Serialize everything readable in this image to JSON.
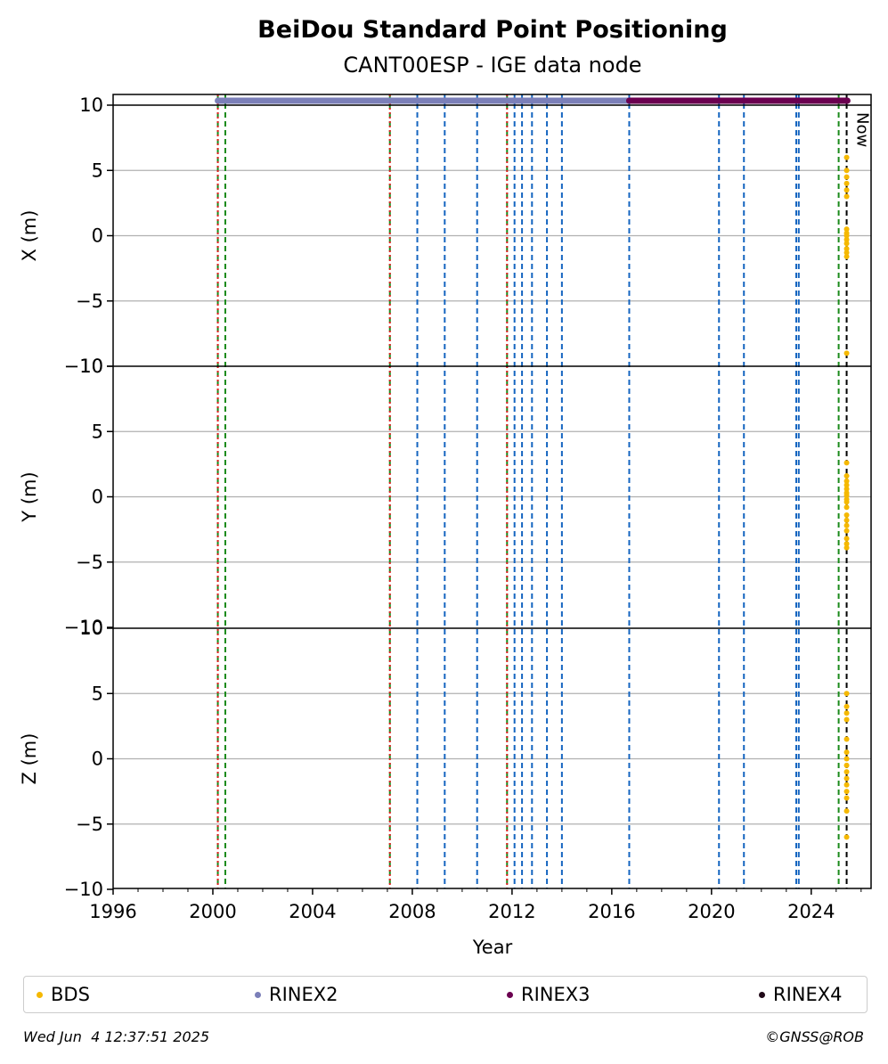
{
  "chart_data": {
    "type": "scatter",
    "title": "BeiDou Standard Point Positioning",
    "subtitle": "CANT00ESP - IGE data node",
    "xlabel": "Year",
    "xlim": [
      1996.0,
      2026.4
    ],
    "x_ticks": [
      1996,
      2000,
      2004,
      2008,
      2012,
      2016,
      2020,
      2024
    ],
    "now_label": "Now",
    "now_x": 2025.42,
    "grid": "horizontal",
    "legend_position": "bottom",
    "panels": [
      {
        "ylabel": "X (m)",
        "ylim": [
          -10,
          10
        ],
        "y_ticks": [
          10,
          5,
          0,
          -5,
          -10
        ],
        "values": [
          6.0,
          5.0,
          4.5,
          4.0,
          3.5,
          3.0,
          0.5,
          0.2,
          0.0,
          -0.3,
          -0.6,
          -1.0,
          -1.3,
          -1.6,
          -9.0
        ]
      },
      {
        "ylabel": "Y (m)",
        "ylim": [
          -10,
          10
        ],
        "y_ticks": [
          10,
          5,
          0,
          -5,
          -10
        ],
        "values": [
          2.6,
          1.6,
          1.2,
          0.9,
          0.6,
          0.3,
          0.1,
          -0.2,
          -0.4,
          -0.8,
          -1.4,
          -1.8,
          -2.2,
          -2.6,
          -3.2,
          -3.6,
          -3.9
        ]
      },
      {
        "ylabel": "Z (m)",
        "ylim": [
          -10,
          10
        ],
        "y_ticks": [
          10,
          5,
          0,
          -5,
          -10
        ],
        "values": [
          5.0,
          4.0,
          3.5,
          3.0,
          1.5,
          0.5,
          0.0,
          -0.5,
          -1.0,
          -1.5,
          -2.0,
          -2.5,
          -3.0,
          -4.0,
          -6.0
        ]
      }
    ],
    "bds_x": 2025.42,
    "series": [
      {
        "name": "BDS",
        "color": "#f5b800"
      },
      {
        "name": "RINEX2",
        "color": "#7b7fb8",
        "x_range": [
          2000.2,
          2016.7
        ]
      },
      {
        "name": "RINEX3",
        "color": "#6b0050",
        "x_range": [
          2016.7,
          2025.45
        ]
      },
      {
        "name": "RINEX4",
        "color": "#200818"
      }
    ],
    "event_lines": {
      "red_dotted": [
        2000.2,
        2007.1,
        2011.8
      ],
      "green_dashed": [
        2000.2,
        2000.5,
        2007.1,
        2011.8,
        2025.1
      ],
      "blue_dashed": [
        2008.2,
        2009.3,
        2010.6,
        2012.1,
        2012.4,
        2012.8,
        2013.4,
        2014.0,
        2016.7,
        2020.3,
        2021.3,
        2023.4,
        2023.5
      ],
      "black_dashed": [
        2025.42
      ]
    }
  },
  "footer": {
    "timestamp": "Wed Jun  4 12:37:51 2025",
    "credit": "©GNSS@ROB"
  }
}
